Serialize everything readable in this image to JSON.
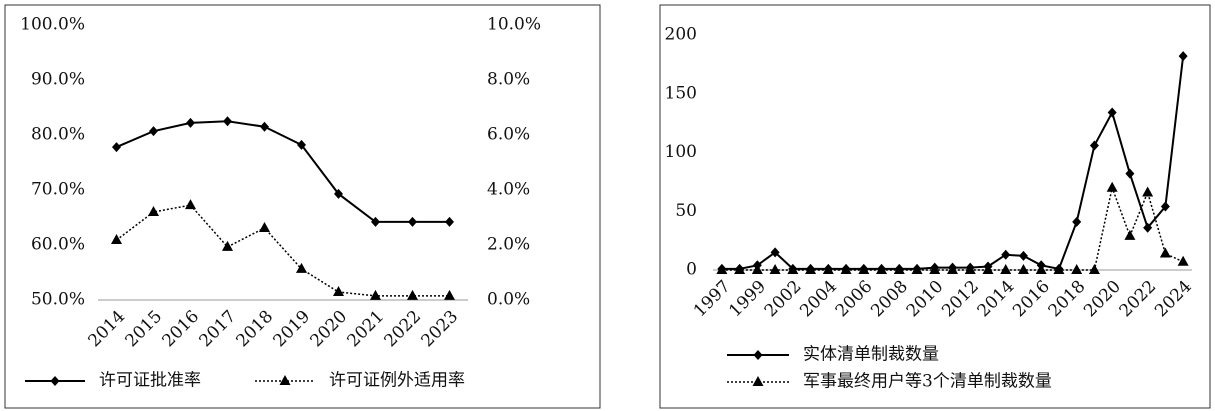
{
  "chart_data": [
    {
      "type": "line",
      "categories": [
        "2014",
        "2015",
        "2016",
        "2017",
        "2018",
        "2019",
        "2020",
        "2021",
        "2022",
        "2023"
      ],
      "series": [
        {
          "name": "许可证批准率",
          "color": "#000000",
          "line_style": "solid",
          "marker": "diamond",
          "values": [
            77.8,
            80.7,
            82.2,
            82.5,
            81.5,
            78.2,
            69.3,
            64.2,
            64.2,
            64.2
          ]
        },
        {
          "name": "许可证例外适用率",
          "color": "#000000",
          "line_style": "dotted",
          "marker": "triangle",
          "axis": "y2",
          "values": [
            2.18,
            3.2,
            3.45,
            1.93,
            2.62,
            1.13,
            0.29,
            0.15,
            0.15,
            0.15
          ]
        }
      ],
      "ylim": [
        50,
        100
      ],
      "yticks": [
        {
          "value": 50,
          "label": "50.0%"
        },
        {
          "value": 60,
          "label": "60.0%"
        },
        {
          "value": 70,
          "label": "70.0%"
        },
        {
          "value": 80,
          "label": "80.0%"
        },
        {
          "value": 90,
          "label": "90.0%"
        },
        {
          "value": 100,
          "label": "100.0%"
        }
      ],
      "y2lim": [
        0,
        10
      ],
      "y2ticks": [
        {
          "value": 0,
          "label": "0.0%"
        },
        {
          "value": 2,
          "label": "2.0%"
        },
        {
          "value": 4,
          "label": "4.0%"
        },
        {
          "value": 6,
          "label": "6.0%"
        },
        {
          "value": 8,
          "label": "8.0%"
        },
        {
          "value": 10,
          "label": "10.0%"
        }
      ],
      "grid": false,
      "legend": "bottom"
    },
    {
      "type": "line",
      "categories": [
        "1997",
        null,
        "1999",
        null,
        "2002",
        null,
        "2004",
        null,
        "2006",
        null,
        "2008",
        null,
        "2010",
        null,
        "2012",
        null,
        "2014",
        null,
        "2016",
        null,
        "2018",
        null,
        "2020",
        null,
        "2022",
        null,
        "2024"
      ],
      "series": [
        {
          "name": "实体清单制裁数量",
          "color": "#000000",
          "line_style": "solid",
          "marker": "diamond",
          "values": [
            1,
            1,
            4,
            15,
            1,
            1,
            1,
            1,
            1,
            1,
            1,
            1,
            2,
            2,
            2,
            3,
            13,
            12,
            4,
            1,
            41,
            106,
            134,
            82,
            36,
            54,
            182
          ]
        },
        {
          "name": "军事最终用户等3个清单制裁数量",
          "color": "#000000",
          "line_style": "dotted",
          "marker": "triangle",
          "values": [
            0,
            0,
            0,
            0,
            0,
            0,
            0,
            0,
            0,
            0,
            0,
            0,
            0,
            0,
            0,
            0,
            0,
            0,
            0,
            0,
            0,
            0,
            70,
            29,
            66,
            14,
            7
          ]
        }
      ],
      "ylim": [
        0,
        200
      ],
      "yticks": [
        0,
        50,
        100,
        150,
        200
      ],
      "grid": false,
      "legend": "bottom"
    }
  ]
}
